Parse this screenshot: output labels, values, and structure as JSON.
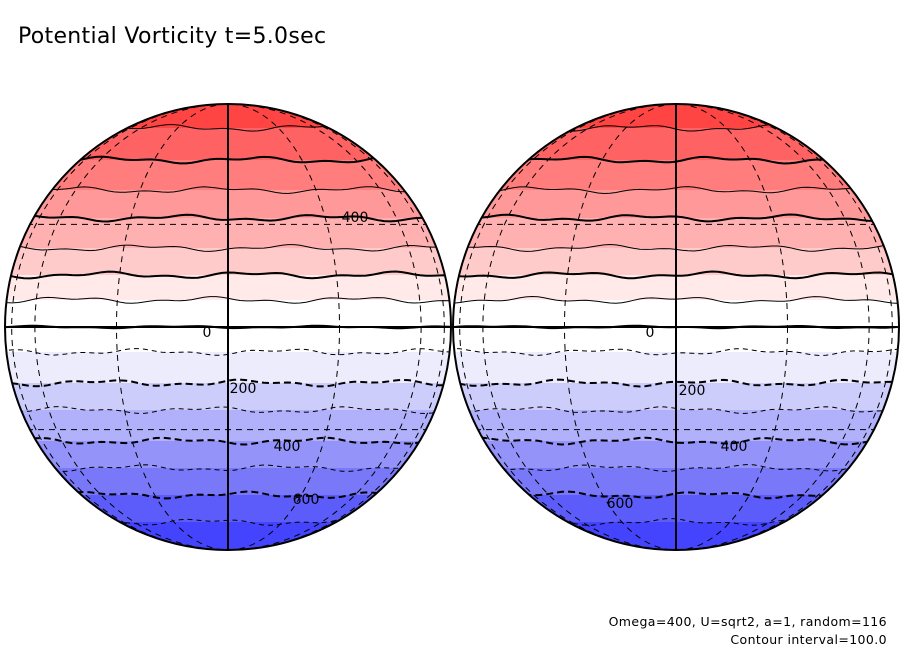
{
  "title": "Potential Vorticity t=5.0sec",
  "footer": {
    "params": "Omega=400, U=sqrt2, a=1, random=116",
    "contour_interval": "Contour interval=100.0"
  },
  "chart_data": {
    "type": "contour",
    "title": "Potential Vorticity t=5.0sec",
    "projection": "orthographic globe, two hemispheres side by side",
    "contour_interval": 100.0,
    "levels": [
      700,
      600,
      500,
      400,
      300,
      200,
      100,
      0,
      -100,
      -200,
      -300,
      -400,
      -500,
      -600,
      -700
    ],
    "label_values": [
      "400",
      "0",
      "200",
      "400",
      "600"
    ],
    "colormap": {
      "positive": "#ff4040",
      "zero": "#ffffff",
      "negative": "#4040ff"
    },
    "band_colors": [
      "#ff4444",
      "#ff6262",
      "#ff7d7d",
      "#ff9898",
      "#ffb1b1",
      "#ffcaca",
      "#ffe9e9",
      "#ffffff",
      "#ffffff",
      "#ececfd",
      "#cdcdfc",
      "#b0b0fb",
      "#9393fa",
      "#7878f9",
      "#5c5cfa",
      "#4444ff"
    ],
    "line_styles": {
      "positive": "solid",
      "negative": "dashed",
      "labeled_every": 200
    },
    "globes": [
      {
        "name": "left",
        "labels": [
          {
            "text": "400",
            "level": 400
          },
          {
            "text": "0",
            "level": 0
          },
          {
            "text": "200",
            "level": -200
          },
          {
            "text": "400",
            "level": -400
          },
          {
            "text": "600",
            "level": -600
          }
        ]
      },
      {
        "name": "right",
        "labels": [
          {
            "text": "0",
            "level": 0
          },
          {
            "text": "200",
            "level": -200
          },
          {
            "text": "400",
            "level": -400
          },
          {
            "text": "600",
            "level": -600
          }
        ]
      }
    ]
  }
}
